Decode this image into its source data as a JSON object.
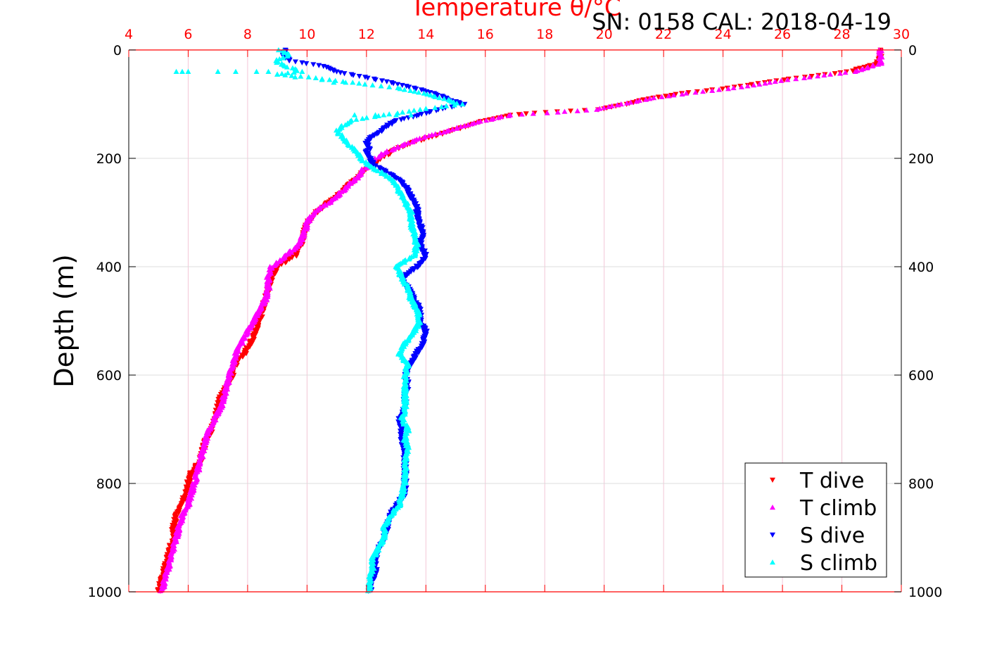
{
  "chart_data": {
    "type": "scatter",
    "title": "Temperature θ/°C",
    "corner_label": "SN: 0158  CAL: 2018-04-19",
    "xlabel": "Temperature θ/°C",
    "ylabel": "Depth (m)",
    "xlim": [
      4,
      30
    ],
    "ylim": [
      0,
      1000
    ],
    "y_inverted": true,
    "x_ticks": [
      "4",
      "6",
      "8",
      "10",
      "12",
      "14",
      "16",
      "18",
      "20",
      "22",
      "24",
      "26",
      "28",
      "30"
    ],
    "y_ticks_left": [
      "0",
      "200",
      "400",
      "600",
      "800",
      "1000"
    ],
    "y_ticks_right": [
      "0",
      "200",
      "400",
      "600",
      "800",
      "1000"
    ],
    "grid": true,
    "legend_position": "bottom-right",
    "series": [
      {
        "name": "T dive",
        "color": "#ff0000",
        "marker": "triangle-down",
        "profile": [
          [
            0,
            29.3
          ],
          [
            10,
            29.3
          ],
          [
            25,
            29.2
          ],
          [
            40,
            28.2
          ],
          [
            55,
            26.0
          ],
          [
            70,
            24.2
          ],
          [
            80,
            22.6
          ],
          [
            90,
            21.5
          ],
          [
            100,
            20.7
          ],
          [
            110,
            19.8
          ],
          [
            115,
            18.0
          ],
          [
            120,
            16.8
          ],
          [
            130,
            16.0
          ],
          [
            140,
            15.4
          ],
          [
            150,
            14.8
          ],
          [
            160,
            14.2
          ],
          [
            170,
            13.6
          ],
          [
            180,
            13.1
          ],
          [
            190,
            12.8
          ],
          [
            200,
            12.5
          ],
          [
            210,
            12.3
          ],
          [
            220,
            12.0
          ],
          [
            230,
            11.8
          ],
          [
            240,
            11.6
          ],
          [
            250,
            11.4
          ],
          [
            260,
            11.2
          ],
          [
            270,
            11.0
          ],
          [
            280,
            10.7
          ],
          [
            290,
            10.5
          ],
          [
            300,
            10.3
          ],
          [
            320,
            10.0
          ],
          [
            340,
            9.9
          ],
          [
            360,
            9.8
          ],
          [
            380,
            9.6
          ],
          [
            400,
            9.0
          ],
          [
            420,
            8.8
          ],
          [
            440,
            8.7
          ],
          [
            460,
            8.6
          ],
          [
            480,
            8.5
          ],
          [
            500,
            8.4
          ],
          [
            520,
            8.3
          ],
          [
            540,
            8.1
          ],
          [
            560,
            7.9
          ],
          [
            580,
            7.6
          ],
          [
            600,
            7.5
          ],
          [
            620,
            7.3
          ],
          [
            640,
            7.1
          ],
          [
            660,
            7.0
          ],
          [
            680,
            6.9
          ],
          [
            700,
            6.8
          ],
          [
            720,
            6.6
          ],
          [
            740,
            6.5
          ],
          [
            760,
            6.4
          ],
          [
            780,
            6.1
          ],
          [
            800,
            6.0
          ],
          [
            820,
            5.9
          ],
          [
            840,
            5.8
          ],
          [
            860,
            5.6
          ],
          [
            880,
            5.5
          ],
          [
            900,
            5.5
          ],
          [
            920,
            5.4
          ],
          [
            940,
            5.3
          ],
          [
            960,
            5.2
          ],
          [
            980,
            5.1
          ],
          [
            1000,
            5.0
          ]
        ]
      },
      {
        "name": "T climb",
        "color": "#ff00ff",
        "marker": "triangle-up",
        "profile": [
          [
            0,
            29.3
          ],
          [
            10,
            29.3
          ],
          [
            25,
            29.3
          ],
          [
            40,
            28.4
          ],
          [
            55,
            26.2
          ],
          [
            70,
            24.4
          ],
          [
            80,
            22.8
          ],
          [
            90,
            21.5
          ],
          [
            100,
            20.6
          ],
          [
            110,
            19.7
          ],
          [
            115,
            18.4
          ],
          [
            120,
            16.9
          ],
          [
            130,
            16.0
          ],
          [
            140,
            15.3
          ],
          [
            150,
            14.7
          ],
          [
            160,
            14.0
          ],
          [
            170,
            13.5
          ],
          [
            180,
            13.0
          ],
          [
            190,
            12.6
          ],
          [
            200,
            12.3
          ],
          [
            210,
            12.1
          ],
          [
            220,
            11.9
          ],
          [
            230,
            11.8
          ],
          [
            240,
            11.6
          ],
          [
            250,
            11.4
          ],
          [
            260,
            11.2
          ],
          [
            270,
            11.0
          ],
          [
            280,
            10.8
          ],
          [
            290,
            10.5
          ],
          [
            300,
            10.2
          ],
          [
            320,
            10.0
          ],
          [
            340,
            9.9
          ],
          [
            360,
            9.7
          ],
          [
            380,
            9.3
          ],
          [
            400,
            8.8
          ],
          [
            420,
            8.7
          ],
          [
            440,
            8.7
          ],
          [
            460,
            8.6
          ],
          [
            480,
            8.4
          ],
          [
            500,
            8.2
          ],
          [
            520,
            8.0
          ],
          [
            540,
            7.8
          ],
          [
            560,
            7.6
          ],
          [
            580,
            7.5
          ],
          [
            600,
            7.4
          ],
          [
            620,
            7.3
          ],
          [
            640,
            7.2
          ],
          [
            660,
            7.1
          ],
          [
            680,
            6.9
          ],
          [
            700,
            6.7
          ],
          [
            720,
            6.6
          ],
          [
            740,
            6.5
          ],
          [
            760,
            6.4
          ],
          [
            780,
            6.3
          ],
          [
            800,
            6.2
          ],
          [
            820,
            6.1
          ],
          [
            840,
            6.0
          ],
          [
            860,
            5.8
          ],
          [
            880,
            5.7
          ],
          [
            900,
            5.6
          ],
          [
            920,
            5.5
          ],
          [
            940,
            5.4
          ],
          [
            960,
            5.3
          ],
          [
            980,
            5.2
          ],
          [
            1000,
            5.1
          ]
        ]
      },
      {
        "name": "S dive",
        "color": "#0000ff",
        "marker": "triangle-down",
        "profile": [
          [
            0,
            9.3
          ],
          [
            10,
            9.2
          ],
          [
            20,
            9.4
          ],
          [
            30,
            10.6
          ],
          [
            40,
            11.0
          ],
          [
            50,
            11.9
          ],
          [
            60,
            12.8
          ],
          [
            70,
            13.6
          ],
          [
            80,
            14.3
          ],
          [
            90,
            14.7
          ],
          [
            100,
            15.3
          ],
          [
            110,
            14.4
          ],
          [
            120,
            13.8
          ],
          [
            130,
            13.0
          ],
          [
            140,
            12.7
          ],
          [
            150,
            12.5
          ],
          [
            160,
            12.2
          ],
          [
            170,
            12.0
          ],
          [
            180,
            12.1
          ],
          [
            190,
            12.0
          ],
          [
            200,
            12.1
          ],
          [
            210,
            12.2
          ],
          [
            220,
            12.5
          ],
          [
            230,
            12.8
          ],
          [
            240,
            13.1
          ],
          [
            250,
            13.3
          ],
          [
            260,
            13.4
          ],
          [
            270,
            13.5
          ],
          [
            280,
            13.6
          ],
          [
            290,
            13.7
          ],
          [
            300,
            13.7
          ],
          [
            320,
            13.8
          ],
          [
            340,
            13.9
          ],
          [
            360,
            13.8
          ],
          [
            380,
            14.0
          ],
          [
            400,
            13.7
          ],
          [
            420,
            13.2
          ],
          [
            440,
            13.4
          ],
          [
            460,
            13.6
          ],
          [
            480,
            13.8
          ],
          [
            500,
            13.8
          ],
          [
            520,
            14.0
          ],
          [
            540,
            13.9
          ],
          [
            560,
            13.7
          ],
          [
            580,
            13.5
          ],
          [
            600,
            13.3
          ],
          [
            620,
            13.4
          ],
          [
            640,
            13.3
          ],
          [
            660,
            13.3
          ],
          [
            680,
            13.1
          ],
          [
            700,
            13.2
          ],
          [
            720,
            13.2
          ],
          [
            740,
            13.3
          ],
          [
            760,
            13.3
          ],
          [
            780,
            13.3
          ],
          [
            800,
            13.3
          ],
          [
            820,
            13.3
          ],
          [
            840,
            13.0
          ],
          [
            860,
            12.8
          ],
          [
            880,
            12.7
          ],
          [
            900,
            12.6
          ],
          [
            920,
            12.4
          ],
          [
            940,
            12.3
          ],
          [
            960,
            12.3
          ],
          [
            980,
            12.2
          ],
          [
            1000,
            12.1
          ]
        ]
      },
      {
        "name": "S climb",
        "color": "#00ffff",
        "marker": "triangle-up",
        "profile": [
          [
            0,
            9.1
          ],
          [
            10,
            9.4
          ],
          [
            20,
            8.9
          ],
          [
            30,
            9.3
          ],
          [
            40,
            9.8
          ],
          [
            45,
            9.0
          ],
          [
            50,
            10.0
          ],
          [
            60,
            11.5
          ],
          [
            70,
            13.0
          ],
          [
            80,
            13.9
          ],
          [
            90,
            14.6
          ],
          [
            100,
            15.2
          ],
          [
            110,
            13.8
          ],
          [
            120,
            12.6
          ],
          [
            130,
            11.5
          ],
          [
            140,
            11.2
          ],
          [
            150,
            11.0
          ],
          [
            160,
            11.2
          ],
          [
            170,
            11.3
          ],
          [
            180,
            11.5
          ],
          [
            190,
            11.7
          ],
          [
            200,
            11.8
          ],
          [
            210,
            12.0
          ],
          [
            220,
            12.3
          ],
          [
            230,
            12.6
          ],
          [
            240,
            12.9
          ],
          [
            250,
            13.0
          ],
          [
            260,
            13.1
          ],
          [
            270,
            13.2
          ],
          [
            280,
            13.3
          ],
          [
            290,
            13.4
          ],
          [
            300,
            13.5
          ],
          [
            320,
            13.5
          ],
          [
            340,
            13.6
          ],
          [
            360,
            13.7
          ],
          [
            380,
            13.6
          ],
          [
            400,
            13.0
          ],
          [
            420,
            13.2
          ],
          [
            440,
            13.4
          ],
          [
            460,
            13.5
          ],
          [
            480,
            13.7
          ],
          [
            500,
            13.8
          ],
          [
            520,
            13.6
          ],
          [
            540,
            13.3
          ],
          [
            560,
            13.1
          ],
          [
            580,
            13.4
          ],
          [
            600,
            13.3
          ],
          [
            620,
            13.3
          ],
          [
            640,
            13.3
          ],
          [
            660,
            13.3
          ],
          [
            680,
            13.2
          ],
          [
            700,
            13.4
          ],
          [
            720,
            13.3
          ],
          [
            740,
            13.4
          ],
          [
            760,
            13.3
          ],
          [
            780,
            13.3
          ],
          [
            800,
            13.3
          ],
          [
            820,
            13.2
          ],
          [
            840,
            13.1
          ],
          [
            860,
            12.8
          ],
          [
            880,
            12.6
          ],
          [
            900,
            12.6
          ],
          [
            920,
            12.4
          ],
          [
            940,
            12.2
          ],
          [
            960,
            12.2
          ],
          [
            980,
            12.1
          ],
          [
            1000,
            12.1
          ]
        ],
        "scatter_points": [
          [
            40,
            5.6
          ],
          [
            40,
            5.8
          ],
          [
            40,
            6.0
          ],
          [
            40,
            7.0
          ],
          [
            40,
            7.6
          ],
          [
            40,
            8.3
          ],
          [
            40,
            8.7
          ],
          [
            45,
            9.0
          ],
          [
            50,
            9.6
          ],
          [
            55,
            10.5
          ],
          [
            60,
            10.9
          ],
          [
            60,
            11.3
          ],
          [
            120,
            11.6
          ],
          [
            120,
            12.3
          ],
          [
            120,
            13.0
          ],
          [
            120,
            13.5
          ]
        ]
      }
    ]
  }
}
